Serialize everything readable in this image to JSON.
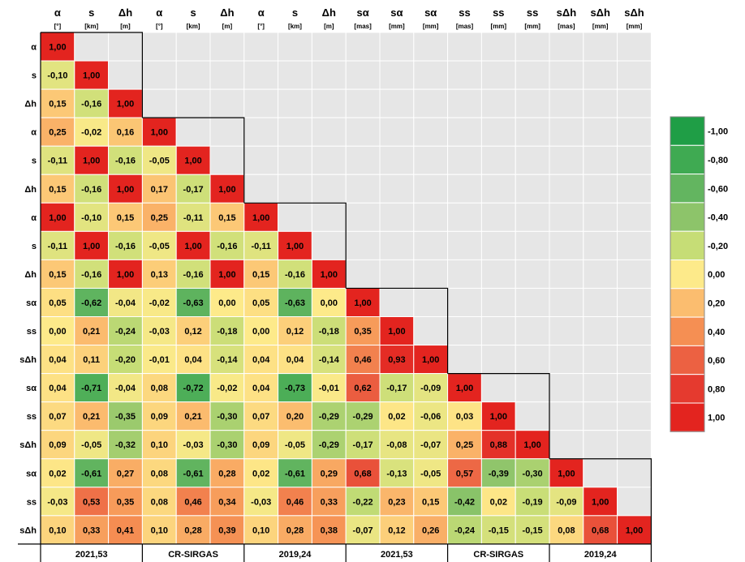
{
  "chart_data": {
    "type": "heatmap",
    "columns": [
      {
        "symbol": "α",
        "unit": "[°]"
      },
      {
        "symbol": "s",
        "unit": "[km]"
      },
      {
        "symbol": "Δh",
        "unit": "[m]"
      },
      {
        "symbol": "α",
        "unit": "[°]"
      },
      {
        "symbol": "s",
        "unit": "[km]"
      },
      {
        "symbol": "Δh",
        "unit": "[m]"
      },
      {
        "symbol": "α",
        "unit": "[°]"
      },
      {
        "symbol": "s",
        "unit": "[km]"
      },
      {
        "symbol": "Δh",
        "unit": "[m]"
      },
      {
        "symbol": "sα",
        "unit": "[mas]"
      },
      {
        "symbol": "sα",
        "unit": "[mm]"
      },
      {
        "symbol": "sα",
        "unit": "[mm]"
      },
      {
        "symbol": "ss",
        "unit": "[mas]"
      },
      {
        "symbol": "ss",
        "unit": "[mm]"
      },
      {
        "symbol": "ss",
        "unit": "[mm]"
      },
      {
        "symbol": "sΔh",
        "unit": "[mas]"
      },
      {
        "symbol": "sΔh",
        "unit": "[mm]"
      },
      {
        "symbol": "sΔh",
        "unit": "[mm]"
      }
    ],
    "rows": [
      "α",
      "s",
      "Δh",
      "α",
      "s",
      "Δh",
      "α",
      "s",
      "Δh",
      "sα",
      "ss",
      "sΔh",
      "sα",
      "ss",
      "sΔh",
      "sα",
      "ss",
      "sΔh"
    ],
    "values": [
      [
        1.0
      ],
      [
        -0.1,
        1.0
      ],
      [
        0.15,
        -0.16,
        1.0
      ],
      [
        0.25,
        -0.02,
        0.16,
        1.0
      ],
      [
        -0.11,
        1.0,
        -0.16,
        -0.05,
        1.0
      ],
      [
        0.15,
        -0.16,
        1.0,
        0.17,
        -0.17,
        1.0
      ],
      [
        1.0,
        -0.1,
        0.15,
        0.25,
        -0.11,
        0.15,
        1.0
      ],
      [
        -0.11,
        1.0,
        -0.16,
        -0.05,
        1.0,
        -0.16,
        -0.11,
        1.0
      ],
      [
        0.15,
        -0.16,
        1.0,
        0.13,
        -0.16,
        1.0,
        0.15,
        -0.16,
        1.0
      ],
      [
        0.05,
        -0.62,
        -0.04,
        -0.02,
        -0.63,
        0.0,
        0.05,
        -0.63,
        0.0,
        1.0
      ],
      [
        0.0,
        0.21,
        -0.24,
        -0.03,
        0.12,
        -0.18,
        0.0,
        0.12,
        -0.18,
        0.35,
        1.0
      ],
      [
        0.04,
        0.11,
        -0.2,
        -0.01,
        0.04,
        -0.14,
        0.04,
        0.04,
        -0.14,
        0.46,
        0.93,
        1.0
      ],
      [
        0.04,
        -0.71,
        -0.04,
        0.08,
        -0.72,
        -0.02,
        0.04,
        -0.73,
        -0.01,
        0.62,
        -0.17,
        -0.09,
        1.0
      ],
      [
        0.07,
        0.21,
        -0.35,
        0.09,
        0.21,
        -0.3,
        0.07,
        0.2,
        -0.29,
        -0.29,
        0.02,
        -0.06,
        0.03,
        1.0
      ],
      [
        0.09,
        -0.05,
        -0.32,
        0.1,
        -0.03,
        -0.3,
        0.09,
        -0.05,
        -0.29,
        -0.17,
        -0.08,
        -0.07,
        0.25,
        0.88,
        1.0
      ],
      [
        0.02,
        -0.61,
        0.27,
        0.08,
        -0.61,
        0.28,
        0.02,
        -0.61,
        0.29,
        0.68,
        -0.13,
        -0.05,
        0.57,
        -0.39,
        -0.3,
        1.0
      ],
      [
        -0.03,
        0.53,
        0.35,
        0.08,
        0.46,
        0.34,
        -0.03,
        0.46,
        0.33,
        -0.22,
        0.23,
        0.15,
        -0.42,
        0.02,
        -0.19,
        -0.09,
        1.0
      ],
      [
        0.1,
        0.33,
        0.41,
        0.1,
        0.28,
        0.39,
        0.1,
        0.28,
        0.38,
        -0.07,
        0.12,
        0.26,
        -0.24,
        -0.15,
        -0.15,
        0.08,
        0.68,
        1.0
      ]
    ],
    "groups": [
      "2021,53",
      "CR-SIRGAS",
      "2019,24",
      "2021,53",
      "CR-SIRGAS",
      "2019,24"
    ],
    "legend": {
      "placement": "right",
      "labels": [
        "-1,00",
        "-0,80",
        "-0,60",
        "-0,40",
        "-0,20",
        "0,00",
        "0,20",
        "0,40",
        "0,60",
        "0,80",
        "1,00"
      ],
      "colors": [
        "#1f9e46",
        "#3faa52",
        "#63b560",
        "#8dc46a",
        "#c6dd76",
        "#fdea8a",
        "#fbbd6f",
        "#f58f53",
        "#ec6142",
        "#e53a2f",
        "#e3241f"
      ]
    },
    "empty_color": "#e6e6e6",
    "value_range": [
      -1,
      1
    ]
  }
}
